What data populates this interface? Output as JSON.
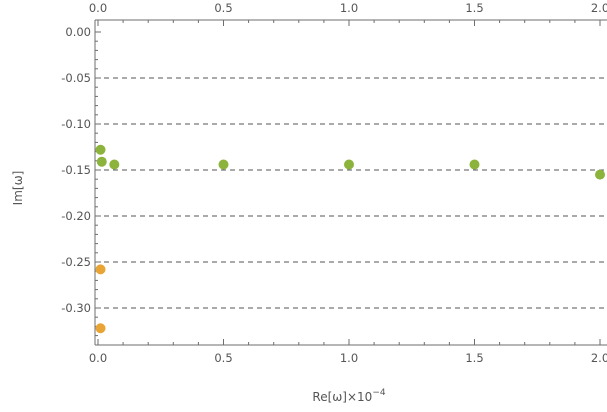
{
  "chart_data": {
    "type": "scatter",
    "title": "",
    "xlabel": "Re[ω]×10",
    "xlabel_exponent": "−4",
    "ylabel": "Im[ω]",
    "xlim": [
      0.0,
      2.0
    ],
    "ylim": [
      -0.345,
      0.0
    ],
    "x_ticks": [
      0.0,
      0.5,
      1.0,
      1.5,
      2.0
    ],
    "x_tick_labels": [
      "0.0",
      "0.5",
      "1.0",
      "1.5",
      "2.0"
    ],
    "y_ticks": [
      0.0,
      -0.05,
      -0.1,
      -0.15,
      -0.2,
      -0.25,
      -0.3
    ],
    "y_tick_labels": [
      "0.00",
      "-0.05",
      "-0.10",
      "-0.15",
      "-0.20",
      "-0.25",
      "-0.30"
    ],
    "grid": "horizontal dashed",
    "frame_ticks_top": true,
    "series": [
      {
        "color": "#8cb43c",
        "points": [
          {
            "x": 0.01,
            "y": -0.128
          },
          {
            "x": 0.015,
            "y": -0.141
          },
          {
            "x": 0.065,
            "y": -0.144
          },
          {
            "x": 0.5,
            "y": -0.144
          },
          {
            "x": 1.0,
            "y": -0.144
          },
          {
            "x": 1.5,
            "y": -0.144
          },
          {
            "x": 2.0,
            "y": -0.155
          }
        ]
      },
      {
        "color": "#e8a535",
        "points": [
          {
            "x": 0.01,
            "y": -0.258
          },
          {
            "x": 0.01,
            "y": -0.322
          }
        ]
      }
    ]
  }
}
